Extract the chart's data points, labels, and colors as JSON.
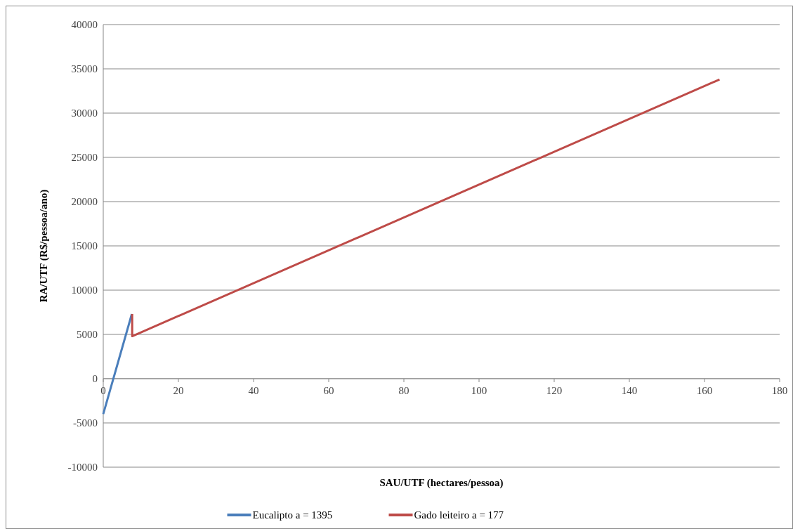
{
  "chart_data": {
    "type": "line",
    "xlabel": "SAU/UTF (hectares/pessoa)",
    "ylabel": "RA/UTF (R$/pessoa/ano)",
    "xlim": [
      0,
      180
    ],
    "xticks": [
      0,
      20,
      40,
      60,
      80,
      100,
      120,
      140,
      160,
      180
    ],
    "ylim": [
      -10000,
      40000
    ],
    "yticks": [
      -10000,
      -5000,
      0,
      5000,
      10000,
      15000,
      20000,
      25000,
      30000,
      35000,
      40000
    ],
    "grid": "y",
    "legend": "bottom",
    "marker": "none",
    "line_style": "solid",
    "series": [
      {
        "name": "Eucalipto a = 1395",
        "color": "#4a7ebb",
        "x": [
          0,
          7.6
        ],
        "values": [
          -4000,
          7300
        ]
      },
      {
        "name": "Gado leiteiro a = 177",
        "color": "#be4b48",
        "x": [
          7.7,
          7.7,
          164
        ],
        "values": [
          7300,
          4800,
          33800
        ]
      }
    ]
  }
}
